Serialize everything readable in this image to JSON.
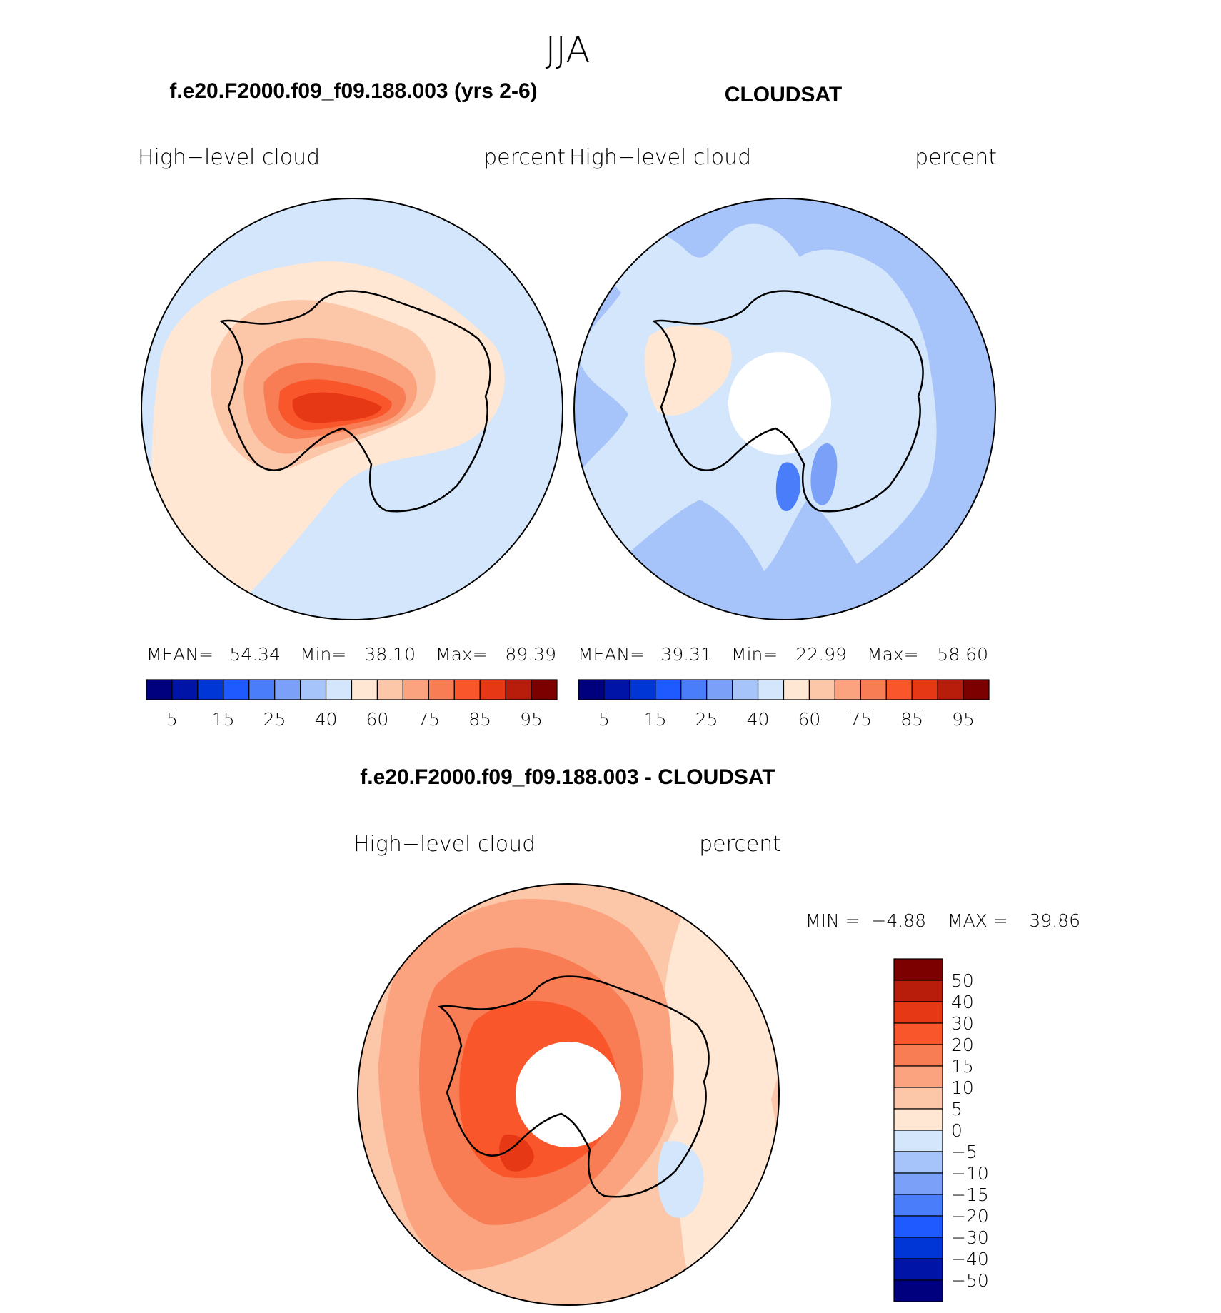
{
  "season_title": "JJA",
  "panels": [
    {
      "id": "model",
      "case_title": "f.e20.F2000.f09_f09.188.003 (yrs 2-6)",
      "variable_label": "High−level cloud",
      "units_label": "percent",
      "stats": {
        "mean_label": "MEAN=",
        "mean_value": "54.34",
        "min_label": "Min=",
        "min_value": "38.10",
        "max_label": "Max=",
        "max_value": "89.39"
      }
    },
    {
      "id": "obs",
      "case_title": "CLOUDSAT",
      "variable_label": "High−level cloud",
      "units_label": "percent",
      "stats": {
        "mean_label": "MEAN=",
        "mean_value": "39.31",
        "min_label": "Min=",
        "min_value": "22.99",
        "max_label": "Max=",
        "max_value": "58.60"
      }
    }
  ],
  "difference_panel": {
    "case_title": "f.e20.F2000.f09_f09.188.003 - CLOUDSAT",
    "variable_label": "High−level cloud",
    "units_label": "percent",
    "min_label": "MIN =",
    "min_value": "−4.88",
    "max_label": "MAX =",
    "max_value": "39.86"
  },
  "chart_data": [
    {
      "type": "heatmap",
      "projection": "south-polar-stereographic",
      "title": "f.e20.F2000.f09_f09.188.003 (yrs 2-6)",
      "subtitle": "High−level cloud",
      "units": "percent",
      "mean": 54.34,
      "min": 38.1,
      "max": 89.39,
      "colorbar": {
        "orientation": "horizontal",
        "colors": [
          "#00007f",
          "#0015a8",
          "#0035d6",
          "#1e5aff",
          "#4a7dfa",
          "#7aa0f7",
          "#a7c4fa",
          "#d3e6fb",
          "#ffe7d4",
          "#fcc6a9",
          "#fba27e",
          "#f87d55",
          "#f9562b",
          "#e63815",
          "#b81c0b",
          "#7c0000"
        ],
        "labels": [
          "5",
          "15",
          "25",
          "40",
          "60",
          "75",
          "85",
          "95"
        ]
      }
    },
    {
      "type": "heatmap",
      "projection": "south-polar-stereographic",
      "title": "CLOUDSAT",
      "subtitle": "High−level cloud",
      "units": "percent",
      "mean": 39.31,
      "min": 22.99,
      "max": 58.6,
      "colorbar": {
        "orientation": "horizontal",
        "colors": [
          "#00007f",
          "#0015a8",
          "#0035d6",
          "#1e5aff",
          "#4a7dfa",
          "#7aa0f7",
          "#a7c4fa",
          "#d3e6fb",
          "#ffe7d4",
          "#fcc6a9",
          "#fba27e",
          "#f87d55",
          "#f9562b",
          "#e63815",
          "#b81c0b",
          "#7c0000"
        ],
        "labels": [
          "5",
          "15",
          "25",
          "40",
          "60",
          "75",
          "85",
          "95"
        ]
      }
    },
    {
      "type": "heatmap",
      "projection": "south-polar-stereographic",
      "title": "f.e20.F2000.f09_f09.188.003 - CLOUDSAT",
      "subtitle": "High−level cloud",
      "units": "percent",
      "min": -4.88,
      "max": 39.86,
      "colorbar": {
        "orientation": "vertical",
        "colors": [
          "#7c0000",
          "#b81c0b",
          "#e63815",
          "#f9562b",
          "#f87d55",
          "#fba27e",
          "#fcc6a9",
          "#ffe7d4",
          "#d3e6fb",
          "#a7c4fa",
          "#7aa0f7",
          "#4a7dfa",
          "#1e5aff",
          "#0035d6",
          "#0015a8",
          "#00007f"
        ],
        "labels": [
          "50",
          "40",
          "30",
          "20",
          "15",
          "10",
          "5",
          "0",
          "−5",
          "−10",
          "−15",
          "−20",
          "−30",
          "−40",
          "−50"
        ]
      }
    }
  ]
}
